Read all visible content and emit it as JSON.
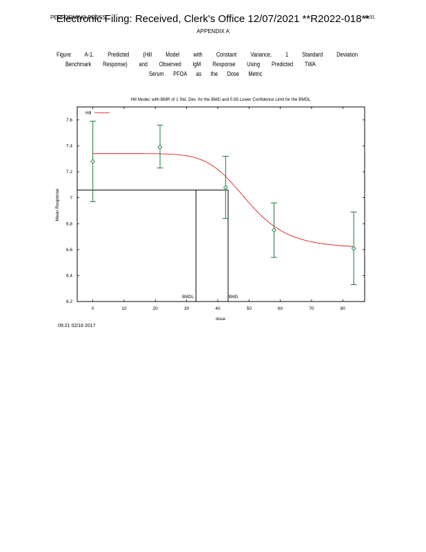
{
  "document": {
    "header_left": "PERFORMING PRESS",
    "stamp": "Electronic Filing: Received, Clerk's Office 12/07/2021 **R2022-018**",
    "header_right": "A-31",
    "appendix": "APPENDIX A",
    "caption_lines": [
      "Figure A-1. Predicted (Hill Model with Constant Variance, 1 Standard Deviation",
      "Benchmark Response) and Observed lgM Response Using Predicted TWA",
      "Serum PFOA as the Dose Metric"
    ],
    "timestamp": "09:21 02/16 2017"
  },
  "chart_data": {
    "type": "line",
    "title": "Hill Model, with BMR of 1 Std. Dev. for the BMD and 0.95 Lower Confidence Limit for the BMDL",
    "xlabel": "dose",
    "ylabel": "Mean Response",
    "xlim": [
      -5,
      87
    ],
    "ylim": [
      6.2,
      7.7
    ],
    "xticks": [
      0,
      10,
      20,
      30,
      40,
      50,
      60,
      70,
      80
    ],
    "yticks": [
      6.2,
      6.4,
      6.6,
      6.8,
      7,
      7.2,
      7.4,
      7.6
    ],
    "ytick_labels": [
      "6.2",
      "6.4",
      "6.6",
      "6.8",
      "7",
      "7.2",
      "7.4",
      "7.6"
    ],
    "legend": {
      "label": "Hill",
      "position": "top-left"
    },
    "series": [
      {
        "name": "Hill",
        "color": "#dd0000",
        "model": {
          "intercept": 7.34,
          "v": -0.73,
          "k": 49.5,
          "n": 7.5
        }
      }
    ],
    "observed": {
      "color": "#117a3a",
      "points": [
        {
          "x": 0,
          "mean": 7.28,
          "lower": 6.97,
          "upper": 7.59
        },
        {
          "x": 21.5,
          "mean": 7.39,
          "lower": 7.23,
          "upper": 7.56
        },
        {
          "x": 42.5,
          "mean": 7.08,
          "lower": 6.84,
          "upper": 7.32
        },
        {
          "x": 58,
          "mean": 6.75,
          "lower": 6.54,
          "upper": 6.96
        },
        {
          "x": 83.5,
          "mean": 6.61,
          "lower": 6.33,
          "upper": 6.89
        }
      ]
    },
    "benchmarks": {
      "bmr_response": 7.06,
      "bmd": 43.3,
      "bmdl": 33.0,
      "bmd_label": "BMD",
      "bmdl_label": "BMDL"
    },
    "grid": false
  }
}
